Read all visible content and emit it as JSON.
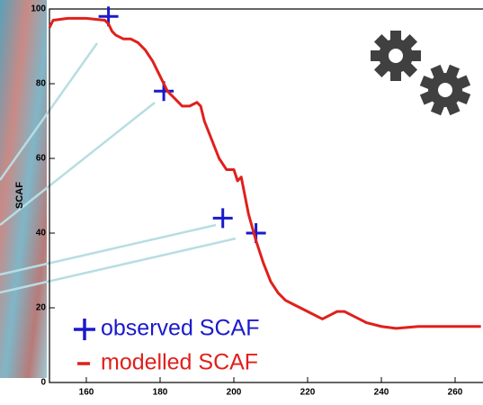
{
  "chart_data": {
    "type": "line",
    "y_label": "SCAF",
    "xlim": [
      150,
      267
    ],
    "ylim": [
      0,
      100
    ],
    "xticks": [
      160,
      180,
      200,
      220,
      240,
      260
    ],
    "yticks": [
      0,
      20,
      40,
      60,
      80,
      100
    ],
    "series": [
      {
        "name": "observed SCAF",
        "color": "#1a1acc",
        "mode": "markers",
        "x": [
          166,
          181,
          197,
          206
        ],
        "values": [
          98,
          78,
          44,
          40
        ]
      },
      {
        "name": "modelled SCAF",
        "color": "#e0201c",
        "mode": "lines",
        "x": [
          150,
          151,
          155,
          160,
          165,
          166,
          167,
          168,
          170,
          172,
          174,
          176,
          178,
          180,
          182,
          184,
          186,
          188,
          190,
          191,
          192,
          194,
          196,
          198,
          200,
          201,
          202,
          203,
          204,
          206,
          208,
          210,
          212,
          214,
          216,
          220,
          224,
          226,
          228,
          230,
          232,
          234,
          236,
          240,
          244,
          250,
          260,
          267
        ],
        "values": [
          95,
          97,
          97.5,
          97.5,
          97,
          96,
          94,
          93,
          92,
          92,
          91,
          89,
          86,
          82,
          78,
          76,
          74,
          74,
          75,
          74,
          70,
          65,
          60,
          57,
          57,
          54,
          55,
          50,
          45,
          38,
          32,
          27,
          24,
          22,
          21,
          19,
          17,
          18,
          19,
          19,
          18,
          17,
          16,
          15,
          14.5,
          15,
          15,
          15
        ]
      }
    ]
  }
}
